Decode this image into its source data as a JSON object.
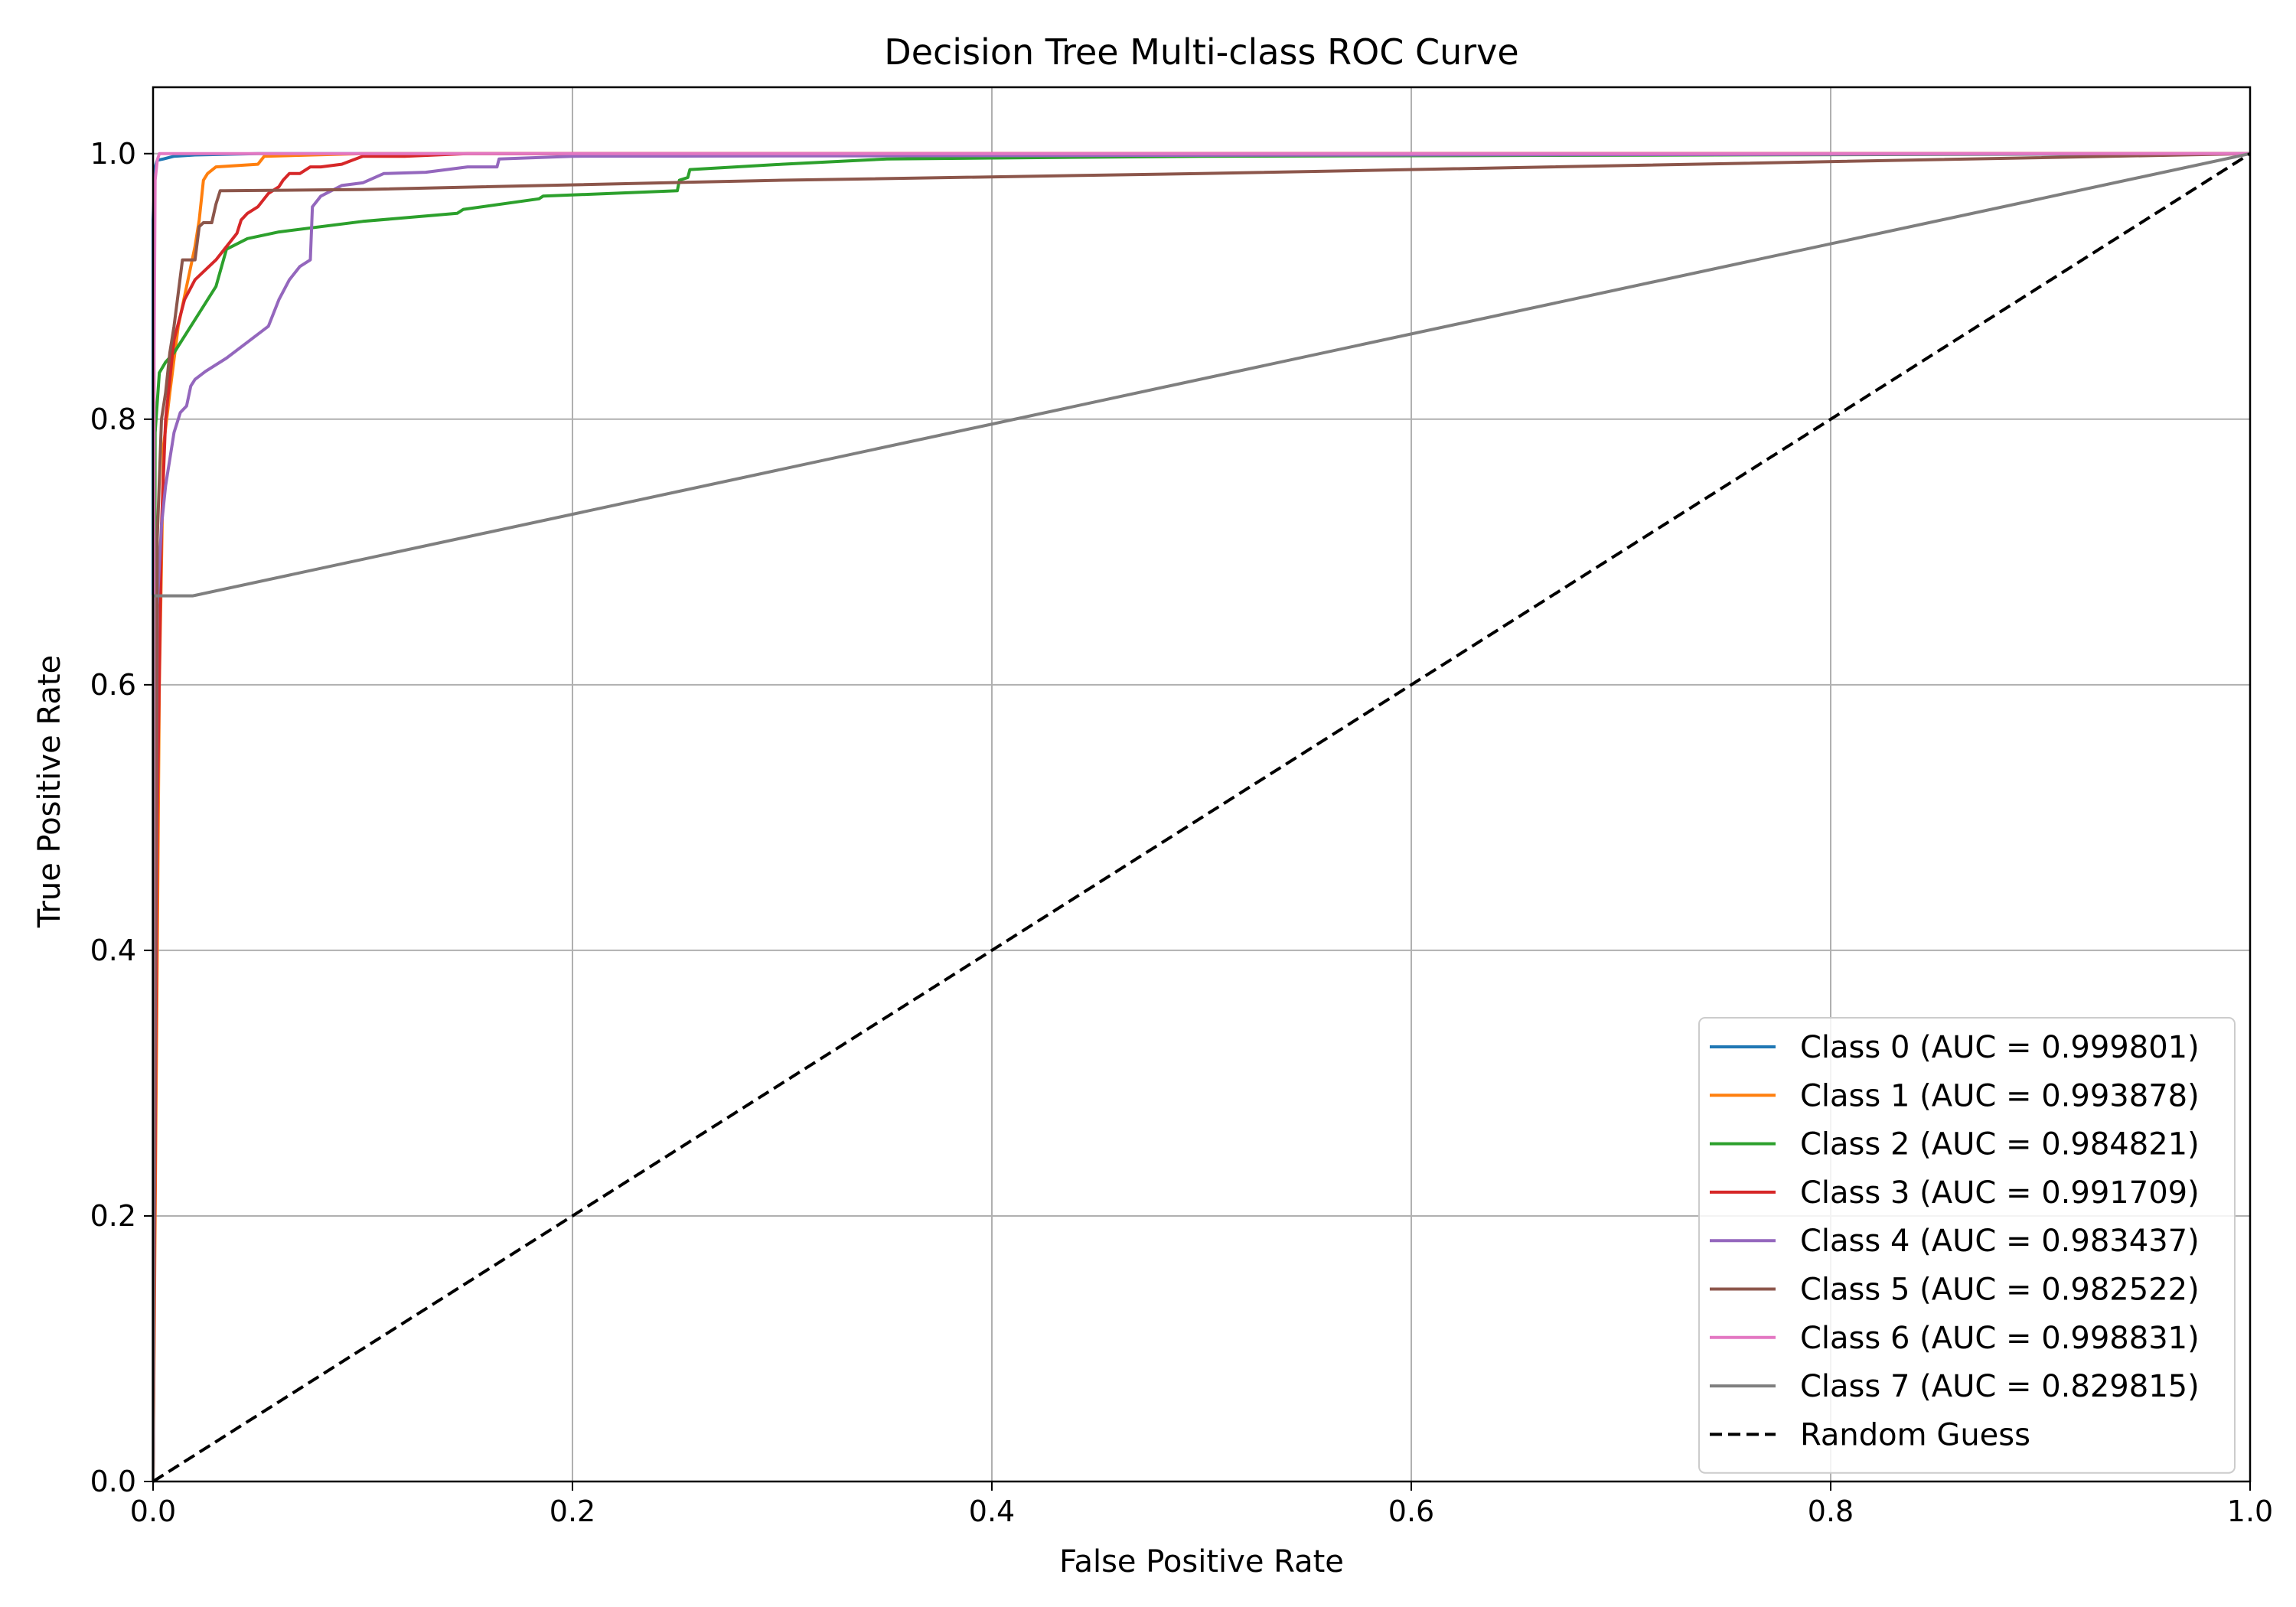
{
  "chart_data": {
    "type": "line",
    "title": "Decision Tree Multi-class ROC Curve",
    "xlabel": "False Positive Rate",
    "ylabel": "True Positive Rate",
    "xlim": [
      0,
      1
    ],
    "ylim": [
      0,
      1.05
    ],
    "xticks": [
      0.0,
      0.2,
      0.4,
      0.6,
      0.8,
      1.0
    ],
    "yticks": [
      0.0,
      0.2,
      0.4,
      0.6,
      0.8,
      1.0
    ],
    "xtick_labels": [
      "0.0",
      "0.2",
      "0.4",
      "0.6",
      "0.8",
      "1.0"
    ],
    "ytick_labels": [
      "0.0",
      "0.2",
      "0.4",
      "0.6",
      "0.8",
      "1.0"
    ],
    "grid": true,
    "legend_position": "bottom-right",
    "series": [
      {
        "name": "Class 0 (AUC = 0.999801)",
        "color": "#1f77b4",
        "dash": "solid",
        "x": [
          0,
          0,
          0.001,
          0.002,
          0.005,
          0.01,
          0.02,
          0.05,
          0.1,
          0.3,
          1.0
        ],
        "y": [
          0,
          0.95,
          0.99,
          0.995,
          0.996,
          0.998,
          0.999,
          1.0,
          1.0,
          1.0,
          1.0
        ]
      },
      {
        "name": "Class 1 (AUC = 0.993878)",
        "color": "#ff7f0e",
        "dash": "solid",
        "x": [
          0,
          0.001,
          0.002,
          0.003,
          0.005,
          0.008,
          0.012,
          0.016,
          0.02,
          0.022,
          0.024,
          0.026,
          0.03,
          0.05,
          0.053,
          0.1,
          0.2,
          1.0
        ],
        "y": [
          0,
          0.2,
          0.4,
          0.6,
          0.78,
          0.82,
          0.87,
          0.9,
          0.93,
          0.95,
          0.98,
          0.985,
          0.99,
          0.992,
          0.998,
          1.0,
          1.0,
          1.0
        ]
      },
      {
        "name": "Class 2 (AUC = 0.984821)",
        "color": "#2ca02c",
        "dash": "solid",
        "x": [
          0,
          0.001,
          0.003,
          0.006,
          0.01,
          0.02,
          0.03,
          0.035,
          0.045,
          0.06,
          0.1,
          0.145,
          0.148,
          0.184,
          0.186,
          0.25,
          0.251,
          0.255,
          0.256,
          0.3,
          0.35,
          0.5,
          1.0
        ],
        "y": [
          0,
          0.79,
          0.835,
          0.843,
          0.85,
          0.875,
          0.9,
          0.928,
          0.936,
          0.941,
          0.949,
          0.955,
          0.958,
          0.966,
          0.968,
          0.972,
          0.98,
          0.982,
          0.988,
          0.992,
          0.996,
          0.998,
          1.0
        ]
      },
      {
        "name": "Class 3 (AUC = 0.991709)",
        "color": "#d62728",
        "dash": "solid",
        "x": [
          0,
          0.002,
          0.004,
          0.006,
          0.008,
          0.01,
          0.015,
          0.02,
          0.03,
          0.04,
          0.042,
          0.045,
          0.05,
          0.055,
          0.06,
          0.062,
          0.065,
          0.07,
          0.075,
          0.08,
          0.09,
          0.095,
          0.1,
          0.12,
          0.15,
          0.2,
          1.0
        ],
        "y": [
          0,
          0.5,
          0.72,
          0.8,
          0.83,
          0.86,
          0.89,
          0.905,
          0.92,
          0.94,
          0.95,
          0.955,
          0.96,
          0.97,
          0.975,
          0.98,
          0.985,
          0.985,
          0.99,
          0.99,
          0.992,
          0.995,
          0.998,
          0.998,
          1.0,
          1.0,
          1.0
        ]
      },
      {
        "name": "Class 4 (AUC = 0.983437)",
        "color": "#9467bd",
        "dash": "solid",
        "x": [
          0,
          0.002,
          0.004,
          0.006,
          0.008,
          0.01,
          0.013,
          0.016,
          0.018,
          0.02,
          0.025,
          0.035,
          0.045,
          0.055,
          0.06,
          0.065,
          0.07,
          0.075,
          0.076,
          0.08,
          0.09,
          0.1,
          0.11,
          0.13,
          0.15,
          0.164,
          0.165,
          0.2,
          1.0
        ],
        "y": [
          0,
          0.66,
          0.72,
          0.75,
          0.77,
          0.79,
          0.805,
          0.81,
          0.825,
          0.83,
          0.836,
          0.846,
          0.858,
          0.87,
          0.89,
          0.905,
          0.915,
          0.92,
          0.96,
          0.968,
          0.976,
          0.978,
          0.985,
          0.986,
          0.99,
          0.99,
          0.996,
          0.998,
          1.0
        ]
      },
      {
        "name": "Class 5 (AUC = 0.982522)",
        "color": "#8c564b",
        "dash": "solid",
        "x": [
          0,
          0.002,
          0.004,
          0.006,
          0.008,
          0.01,
          0.012,
          0.014,
          0.016,
          0.018,
          0.02,
          0.022,
          0.024,
          0.026,
          0.028,
          0.03,
          0.032,
          0.034,
          0.1,
          0.3,
          0.5,
          1.0
        ],
        "y": [
          0,
          0.71,
          0.8,
          0.82,
          0.85,
          0.87,
          0.895,
          0.92,
          0.92,
          0.92,
          0.92,
          0.945,
          0.948,
          0.948,
          0.948,
          0.962,
          0.972,
          0.972,
          0.973,
          0.98,
          0.985,
          1.0
        ]
      },
      {
        "name": "Class 6 (AUC = 0.998831)",
        "color": "#e377c2",
        "dash": "solid",
        "x": [
          0,
          0.0005,
          0.001,
          0.002,
          0.003,
          0.01,
          0.1,
          1.0
        ],
        "y": [
          0,
          0.85,
          0.98,
          0.995,
          1.0,
          1.0,
          1.0,
          1.0
        ]
      },
      {
        "name": "Class 7 (AUC = 0.829815)",
        "color": "#7f7f7f",
        "dash": "solid",
        "x": [
          0,
          0,
          0.019,
          1.0
        ],
        "y": [
          0,
          0.667,
          0.667,
          1.0
        ]
      },
      {
        "name": "Random Guess",
        "color": "#000000",
        "dash": "dashed",
        "x": [
          0,
          1
        ],
        "y": [
          0,
          1
        ]
      }
    ]
  }
}
